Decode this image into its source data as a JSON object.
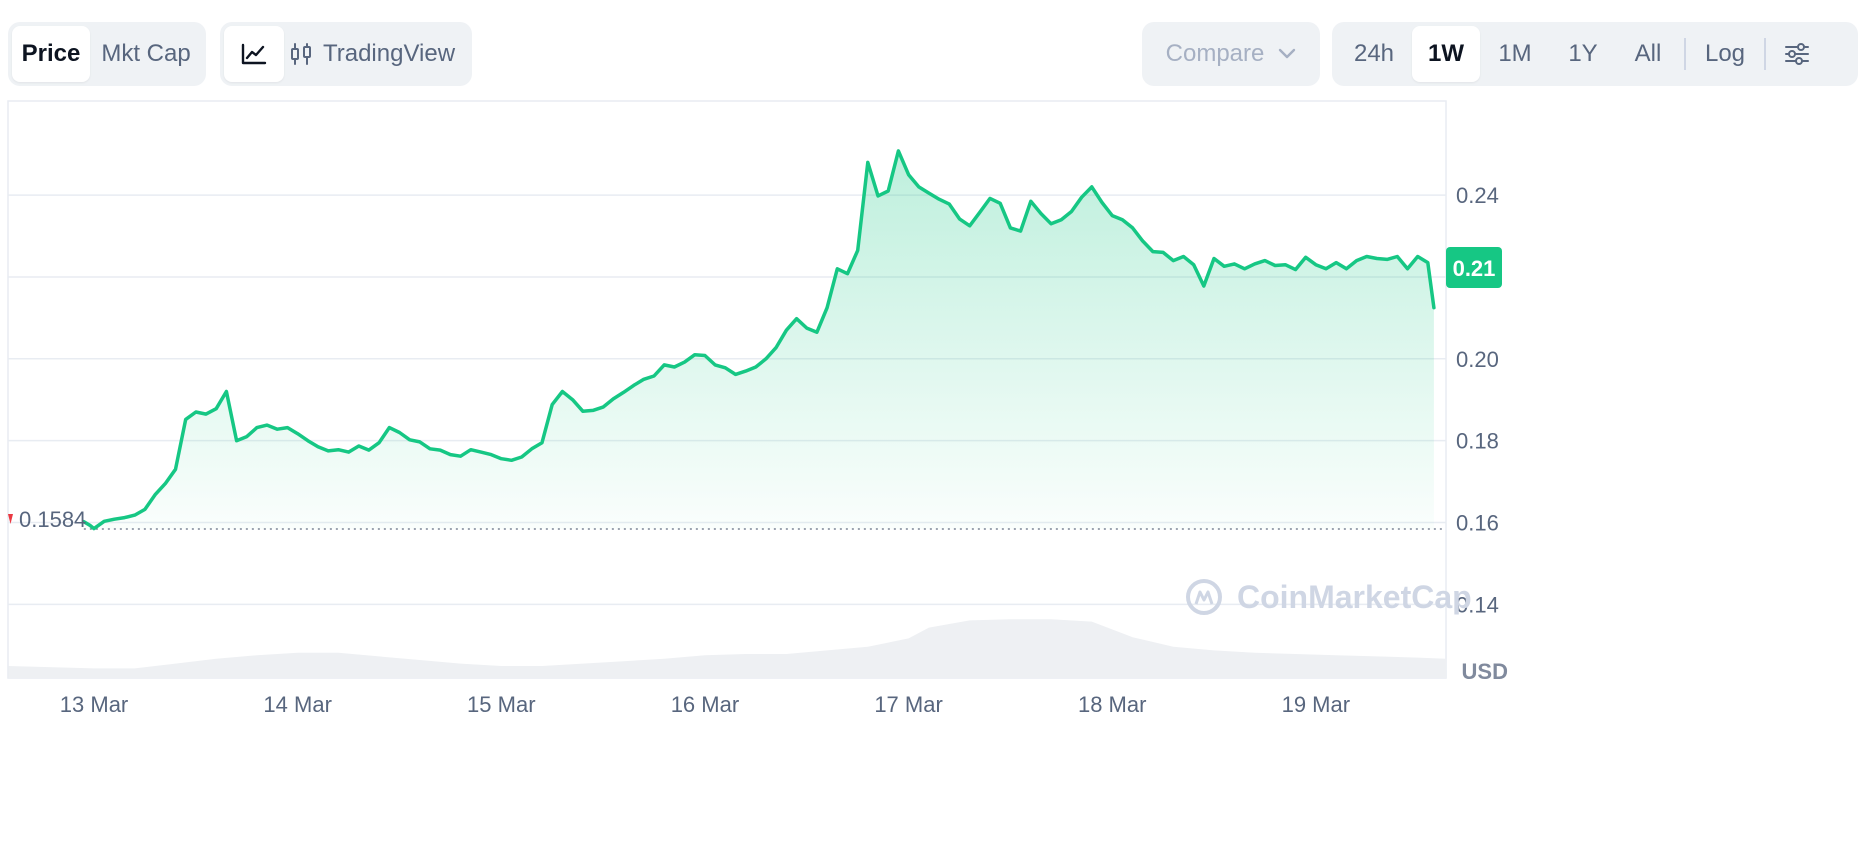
{
  "toolbar": {
    "type_tabs": [
      {
        "label": "Price",
        "active": true
      },
      {
        "label": "Mkt Cap",
        "active": false
      }
    ],
    "view_tabs": [
      {
        "icon": "line-chart-icon",
        "label": "",
        "active": true
      },
      {
        "icon": "candlestick-icon",
        "label": "TradingView",
        "active": false
      }
    ],
    "compare": {
      "label": "Compare",
      "icon": "chevron-down-icon"
    },
    "range_tabs": [
      {
        "label": "24h",
        "active": false
      },
      {
        "label": "1W",
        "active": true
      },
      {
        "label": "1M",
        "active": false
      },
      {
        "label": "1Y",
        "active": false
      },
      {
        "label": "All",
        "active": false
      }
    ],
    "log_label": "Log",
    "settings_icon": "sliders-icon"
  },
  "colors": {
    "line": "#16c784",
    "current_tag": "#16c784",
    "down_marker": "#ea3943",
    "grid": "#e8ecf2",
    "volume": "#eef0f3"
  },
  "watermark": {
    "text": "CoinMarketCap",
    "icon": "coinmarketcap-logo-icon"
  },
  "chart_data": {
    "type": "area",
    "currency": "USD",
    "y_ticks": [
      0.14,
      0.16,
      0.18,
      0.2,
      0.24
    ],
    "y_tick_labels": [
      "0.14",
      "0.16",
      "0.18",
      "0.20",
      "0.24"
    ],
    "ylim": [
      0.122,
      0.263
    ],
    "x_tick_labels": [
      "13 Mar",
      "14 Mar",
      "15 Mar",
      "16 Mar",
      "17 Mar",
      "18 Mar",
      "19 Mar"
    ],
    "xlim": [
      -0.4225,
      6.6392
    ],
    "open_price": 0.1584,
    "open_price_label": "0.1584",
    "current_price": 0.2125,
    "current_price_label": "0.21",
    "series": [
      {
        "x": [
          -0.05,
          -0.02,
          0.0,
          0.05,
          0.1,
          0.15,
          0.2,
          0.25,
          0.3,
          0.35,
          0.4,
          0.45,
          0.5,
          0.55,
          0.6,
          0.65,
          0.7,
          0.75,
          0.8,
          0.85,
          0.9,
          0.95,
          1.0,
          1.05,
          1.1,
          1.15,
          1.2,
          1.25,
          1.3,
          1.35,
          1.4,
          1.45,
          1.5,
          1.55,
          1.6,
          1.65,
          1.7,
          1.75,
          1.8,
          1.85,
          1.9,
          1.95,
          2.0,
          2.05,
          2.1,
          2.15,
          2.2,
          2.25,
          2.3,
          2.35,
          2.4,
          2.45,
          2.5,
          2.55,
          2.6,
          2.65,
          2.7,
          2.75,
          2.8,
          2.85,
          2.9,
          2.95,
          3.0,
          3.05,
          3.1,
          3.15,
          3.2,
          3.25,
          3.3,
          3.35,
          3.4,
          3.45,
          3.5,
          3.55,
          3.6,
          3.65,
          3.7,
          3.75,
          3.8,
          3.85,
          3.9,
          3.95,
          4.0,
          4.05,
          4.1,
          4.15,
          4.2,
          4.25,
          4.3,
          4.35,
          4.4,
          4.45,
          4.5,
          4.55,
          4.6,
          4.65,
          4.7,
          4.75,
          4.8,
          4.85,
          4.9,
          4.95,
          5.0,
          5.05,
          5.1,
          5.15,
          5.2,
          5.25,
          5.3,
          5.35,
          5.4,
          5.45,
          5.5,
          5.55,
          5.6,
          5.65,
          5.7,
          5.75,
          5.8,
          5.85,
          5.9,
          5.95,
          6.0,
          6.05,
          6.1,
          6.15,
          6.2,
          6.25,
          6.3,
          6.35,
          6.4,
          6.45,
          6.5,
          6.55,
          6.58
        ],
        "y": [
          0.1602,
          0.1593,
          0.1585,
          0.1603,
          0.1608,
          0.1612,
          0.1618,
          0.1632,
          0.1668,
          0.1695,
          0.173,
          0.1852,
          0.187,
          0.1865,
          0.1878,
          0.192,
          0.18,
          0.181,
          0.1832,
          0.1838,
          0.1828,
          0.1832,
          0.1817,
          0.18,
          0.1785,
          0.1775,
          0.1778,
          0.1772,
          0.1787,
          0.1777,
          0.1795,
          0.1832,
          0.182,
          0.1802,
          0.1797,
          0.178,
          0.1777,
          0.1766,
          0.1762,
          0.1778,
          0.1772,
          0.1766,
          0.1756,
          0.1752,
          0.176,
          0.178,
          0.1795,
          0.1888,
          0.192,
          0.19,
          0.1872,
          0.1874,
          0.1882,
          0.1902,
          0.1918,
          0.1935,
          0.195,
          0.1958,
          0.1985,
          0.198,
          0.1992,
          0.201,
          0.2008,
          0.1985,
          0.1978,
          0.1962,
          0.197,
          0.198,
          0.2,
          0.2028,
          0.207,
          0.2098,
          0.2075,
          0.2065,
          0.2125,
          0.222,
          0.2208,
          0.2265,
          0.248,
          0.2398,
          0.241,
          0.2508,
          0.245,
          0.242,
          0.2405,
          0.239,
          0.2378,
          0.2342,
          0.2325,
          0.2358,
          0.2392,
          0.238,
          0.232,
          0.2312,
          0.2385,
          0.2355,
          0.233,
          0.234,
          0.236,
          0.2395,
          0.242,
          0.2382,
          0.235,
          0.234,
          0.232,
          0.2288,
          0.2262,
          0.226,
          0.224,
          0.225,
          0.223,
          0.2178,
          0.2245,
          0.2226,
          0.2232,
          0.222,
          0.2232,
          0.224,
          0.2228,
          0.223,
          0.2218,
          0.2248,
          0.223,
          0.222,
          0.2235,
          0.222,
          0.224,
          0.225,
          0.2245,
          0.2243,
          0.225,
          0.222,
          0.225,
          0.2235,
          0.2125
        ]
      }
    ],
    "volume": {
      "x": [
        -0.42,
        -0.2,
        0.0,
        0.2,
        0.4,
        0.6,
        0.8,
        1.0,
        1.2,
        1.4,
        1.6,
        1.8,
        2.0,
        2.2,
        2.4,
        2.6,
        2.8,
        3.0,
        3.2,
        3.4,
        3.6,
        3.8,
        4.0,
        4.1,
        4.3,
        4.5,
        4.7,
        4.9,
        5.1,
        5.3,
        5.5,
        5.7,
        5.9,
        6.1,
        6.3,
        6.5,
        6.64
      ],
      "y": [
        1.0,
        0.9,
        0.8,
        0.8,
        1.2,
        1.6,
        1.9,
        2.1,
        2.1,
        1.8,
        1.5,
        1.2,
        1.0,
        1.0,
        1.2,
        1.4,
        1.6,
        1.9,
        2.0,
        2.0,
        2.3,
        2.6,
        3.3,
        4.2,
        4.8,
        4.9,
        4.9,
        4.7,
        3.4,
        2.6,
        2.3,
        2.1,
        2.0,
        1.9,
        1.8,
        1.7,
        1.6
      ]
    }
  }
}
